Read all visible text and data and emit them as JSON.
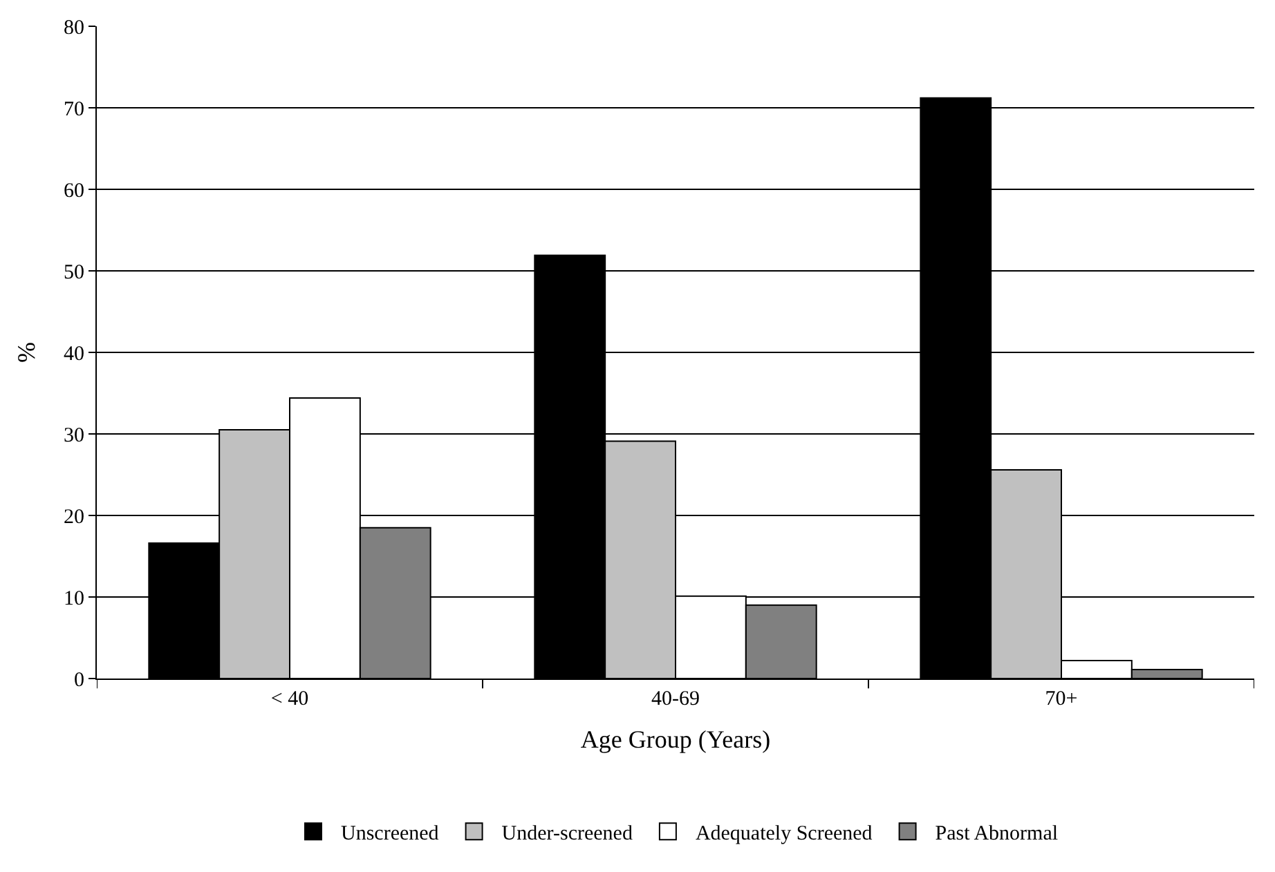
{
  "chart_data": {
    "type": "bar",
    "xlabel": "Age Group (Years)",
    "ylabel": "%",
    "categories": [
      "< 40",
      "40-69",
      "70+"
    ],
    "series": [
      {
        "name": "Unscreened",
        "color": "#000000",
        "values": [
          16.6,
          51.9,
          71.2
        ]
      },
      {
        "name": "Under-screened",
        "color": "#c0c0c0",
        "values": [
          30.5,
          29.1,
          25.6
        ]
      },
      {
        "name": "Adequately Screened",
        "color": "#ffffff",
        "values": [
          34.4,
          10.1,
          2.2
        ]
      },
      {
        "name": "Past Abnormal",
        "color": "#808080",
        "values": [
          18.5,
          9.0,
          1.1
        ]
      }
    ],
    "ylim": [
      0,
      80
    ],
    "yticks": [
      0,
      10,
      20,
      30,
      40,
      50,
      60,
      70,
      80
    ],
    "grid": "y",
    "legend": "bottom"
  }
}
